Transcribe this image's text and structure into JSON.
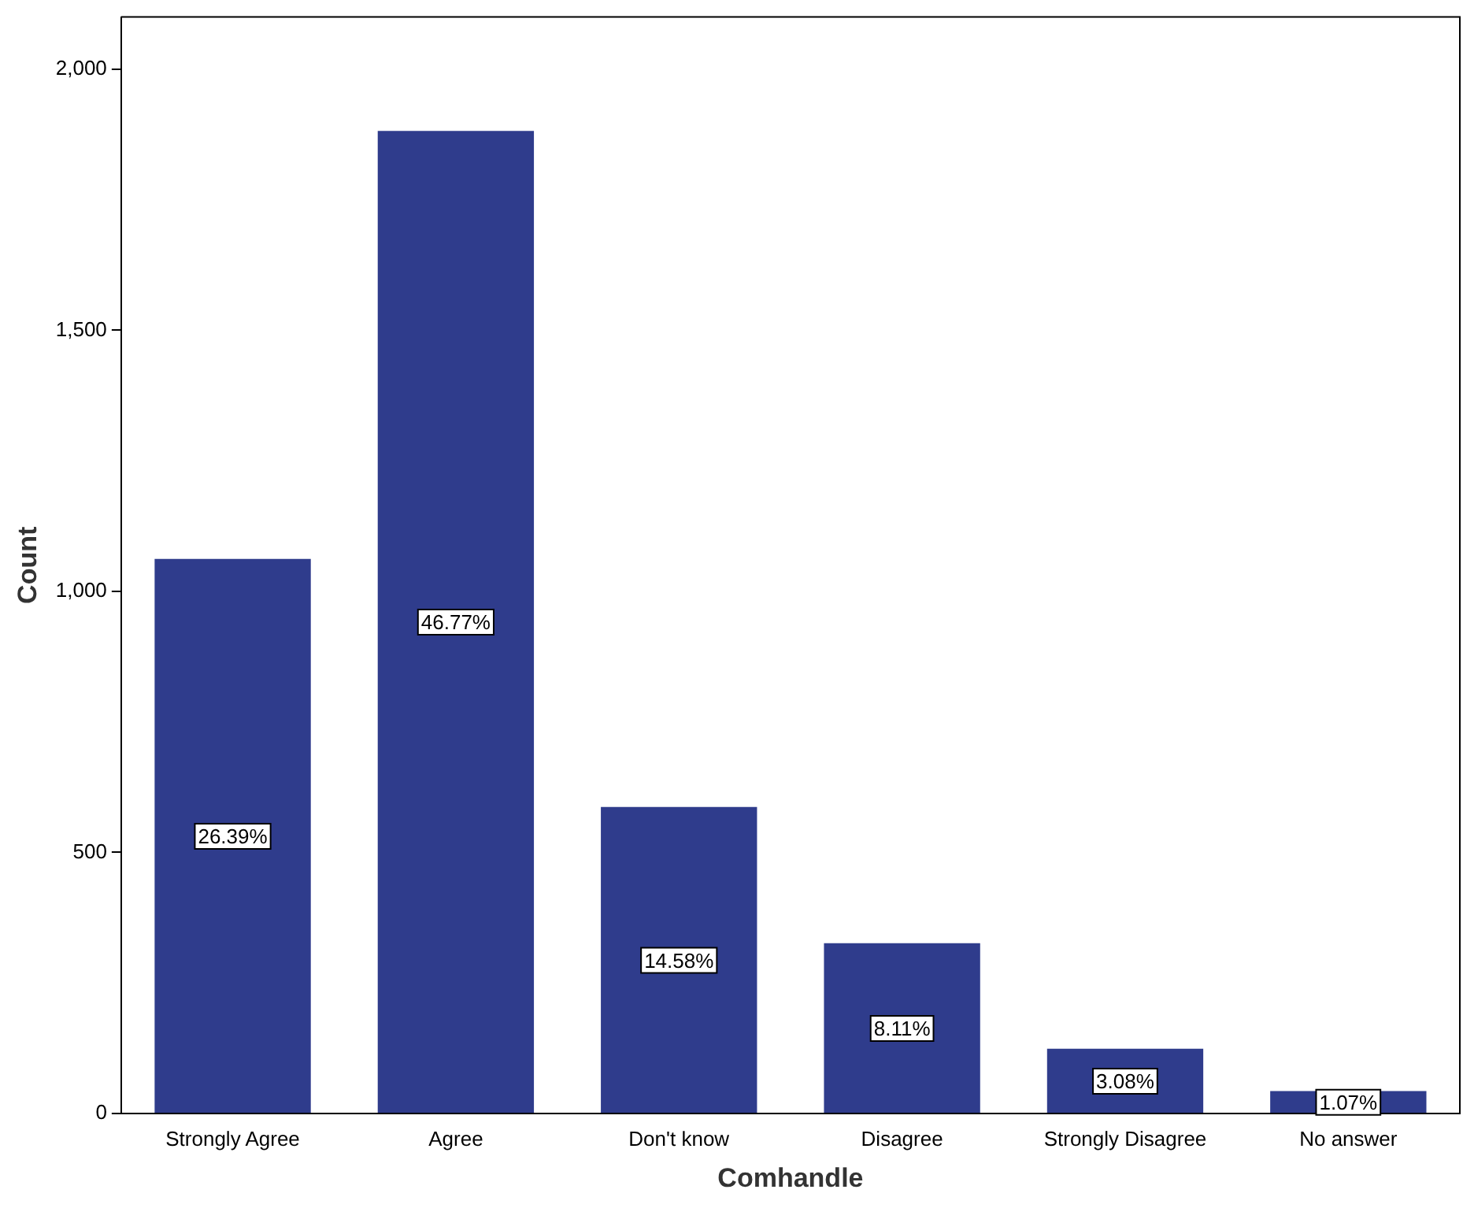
{
  "chart_data": {
    "type": "bar",
    "xlabel": "Comhandle",
    "ylabel": "Count",
    "categories": [
      "Strongly Agree",
      "Agree",
      "Don't know",
      "Disagree",
      "Strongly Disagree",
      "No answer"
    ],
    "values": [
      1062,
      1882,
      587,
      326,
      124,
      43
    ],
    "annotations": [
      "26.39%",
      "46.77%",
      "14.58%",
      "8.11%",
      "3.08%",
      "1.07%"
    ],
    "color": "#2f3c8c",
    "ylim": [
      0,
      2100
    ],
    "yticks": [
      0,
      500,
      {
        "value": 1000,
        "label": "1,000"
      },
      {
        "value": 1500,
        "label": "1,500"
      },
      {
        "value": 2000,
        "label": "2,000"
      }
    ],
    "grid": false,
    "legend": false
  }
}
